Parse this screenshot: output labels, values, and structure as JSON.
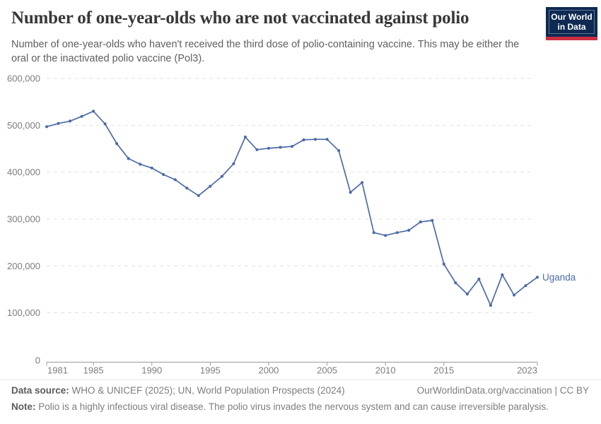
{
  "header": {
    "title": "Number of one-year-olds who are not vaccinated against polio",
    "subtitle": "Number of one-year-olds who haven't received the third dose of polio-containing vaccine. This may be either the oral or the inactivated polio vaccine (Pol3).",
    "logo": {
      "line1": "Our World",
      "line2": "in Data",
      "bg_color": "#0e2a52",
      "accent_color": "#cf2e40"
    }
  },
  "chart_data": {
    "type": "line",
    "title": "Number of one-year-olds who are not vaccinated against polio",
    "xlabel": "",
    "ylabel": "",
    "xlim": [
      1981,
      2023
    ],
    "ylim": [
      0,
      600000
    ],
    "x_ticks": [
      1981,
      1985,
      1990,
      1995,
      2000,
      2005,
      2010,
      2015,
      2023
    ],
    "y_ticks": [
      0,
      100000,
      200000,
      300000,
      400000,
      500000,
      600000
    ],
    "grid": "horizontal-dashed",
    "legend_position": "end-of-line-label",
    "series": [
      {
        "name": "Uganda",
        "color": "#4c6ba8",
        "x": [
          1981,
          1982,
          1983,
          1984,
          1985,
          1986,
          1987,
          1988,
          1989,
          1990,
          1991,
          1992,
          1993,
          1994,
          1995,
          1996,
          1997,
          1998,
          1999,
          2000,
          2001,
          2002,
          2003,
          2004,
          2005,
          2006,
          2007,
          2008,
          2009,
          2010,
          2011,
          2012,
          2013,
          2014,
          2015,
          2016,
          2017,
          2018,
          2019,
          2020,
          2021,
          2022,
          2023
        ],
        "values": [
          497000,
          504000,
          509000,
          519000,
          530000,
          503000,
          461000,
          429000,
          417000,
          409000,
          395000,
          384000,
          366000,
          350000,
          370000,
          391000,
          418000,
          475000,
          448000,
          451000,
          453000,
          455000,
          469000,
          470000,
          470000,
          446000,
          357000,
          378000,
          271000,
          265000,
          271000,
          276000,
          294000,
          297000,
          204000,
          164000,
          140000,
          172000,
          116000,
          181000,
          138000,
          158000,
          176000
        ]
      }
    ]
  },
  "footer": {
    "data_source_label": "Data source:",
    "data_source_text": "WHO & UNICEF (2025); UN, World Population Prospects (2024)",
    "attribution": "OurWorldinData.org/vaccination | CC BY",
    "note_label": "Note:",
    "note_text": "Polio is a highly infectious viral disease. The polio virus invades the nervous system and can cause irreversible paralysis."
  }
}
